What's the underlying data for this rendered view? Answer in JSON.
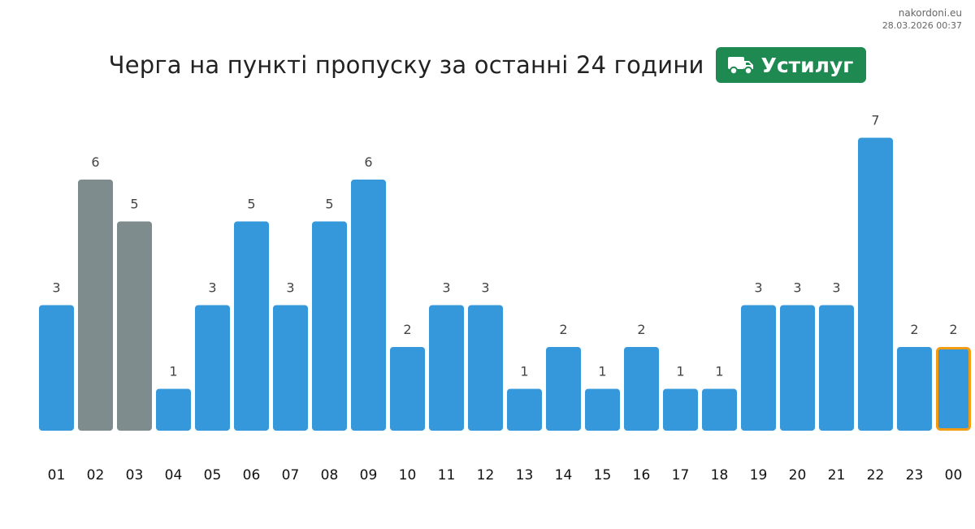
{
  "meta": {
    "site": "nakordoni.eu",
    "timestamp": "28.03.2026 00:37"
  },
  "header": {
    "title": "Черга на пункті пропуску за останні 24 години",
    "badge_label": "Устилуг",
    "badge_icon": "truck-icon",
    "badge_color": "#1e8a52"
  },
  "chart_data": {
    "type": "bar",
    "categories": [
      "01",
      "02",
      "03",
      "04",
      "05",
      "06",
      "07",
      "08",
      "09",
      "10",
      "11",
      "12",
      "13",
      "14",
      "15",
      "16",
      "17",
      "18",
      "19",
      "20",
      "21",
      "22",
      "23",
      "00"
    ],
    "values": [
      3,
      6,
      5,
      1,
      3,
      5,
      3,
      5,
      6,
      2,
      3,
      3,
      1,
      2,
      1,
      2,
      1,
      1,
      3,
      3,
      3,
      7,
      2,
      2
    ],
    "bar_colors": [
      "#3498db",
      "#7f8c8d",
      "#7f8c8d",
      "#3498db",
      "#3498db",
      "#3498db",
      "#3498db",
      "#3498db",
      "#3498db",
      "#3498db",
      "#3498db",
      "#3498db",
      "#3498db",
      "#3498db",
      "#3498db",
      "#3498db",
      "#3498db",
      "#3498db",
      "#3498db",
      "#3498db",
      "#3498db",
      "#3498db",
      "#3498db",
      "#3498db"
    ],
    "highlight_category": "00",
    "highlight_border_color": "#f39c12",
    "ylim": [
      0,
      7
    ],
    "grid": false,
    "data_labels": true
  }
}
